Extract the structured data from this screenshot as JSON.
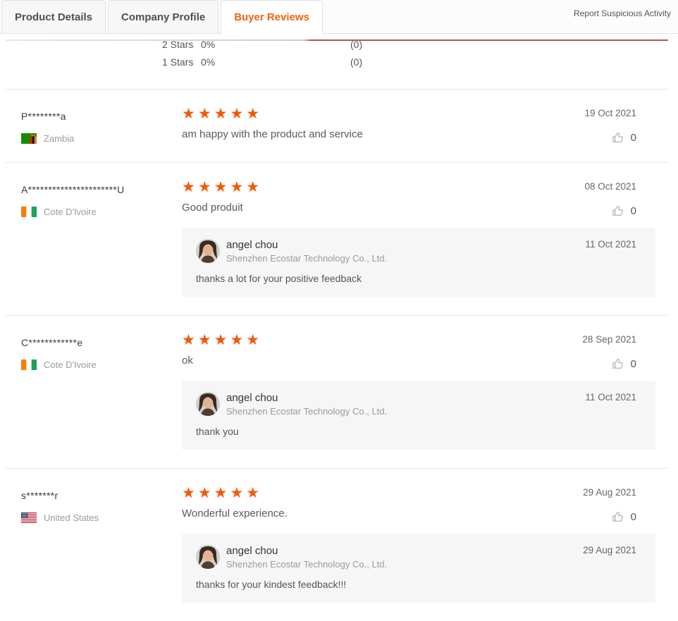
{
  "colors": {
    "accent": "#f0630c",
    "star": "#f25907",
    "reply_bg": "#f6f6f6"
  },
  "tabs": [
    {
      "label": "Product Details",
      "active": false
    },
    {
      "label": "Company Profile",
      "active": false
    },
    {
      "label": "Buyer Reviews",
      "active": true
    }
  ],
  "report_link": "Report Suspicious Activity",
  "rating_breakdown": [
    {
      "label": "2 Stars",
      "percent": "0%",
      "count": "(0)"
    },
    {
      "label": "1 Stars",
      "percent": "0%",
      "count": "(0)"
    }
  ],
  "reviews": [
    {
      "reviewer": "P********a",
      "country": "Zambia",
      "flag": "zambia",
      "stars": 5,
      "text": "am happy with the product and service",
      "date": "19 Oct 2021",
      "likes": "0",
      "reply": null
    },
    {
      "reviewer": "A**********************U",
      "country": "Cote D'Ivoire",
      "flag": "cotedivoire",
      "stars": 5,
      "text": "Good produit",
      "date": "08 Oct 2021",
      "likes": "0",
      "reply": {
        "author": "angel chou",
        "company": "Shenzhen Ecostar Technology Co., Ltd.",
        "text": "thanks a lot for your positive feedback",
        "date": "11 Oct 2021"
      }
    },
    {
      "reviewer": "C************e",
      "country": "Cote D'Ivoire",
      "flag": "cotedivoire",
      "stars": 5,
      "text": "ok",
      "date": "28 Sep 2021",
      "likes": "0",
      "reply": {
        "author": "angel chou",
        "company": "Shenzhen Ecostar Technology Co., Ltd.",
        "text": "thank you",
        "date": "11 Oct 2021"
      }
    },
    {
      "reviewer": "s*******r",
      "country": "United States",
      "flag": "us",
      "stars": 5,
      "text": "Wonderful experience.",
      "date": "29 Aug 2021",
      "likes": "0",
      "reply": {
        "author": "angel chou",
        "company": "Shenzhen Ecostar Technology Co., Ltd.",
        "text": "thanks for your kindest feedback!!!",
        "date": "29 Aug 2021"
      }
    }
  ]
}
